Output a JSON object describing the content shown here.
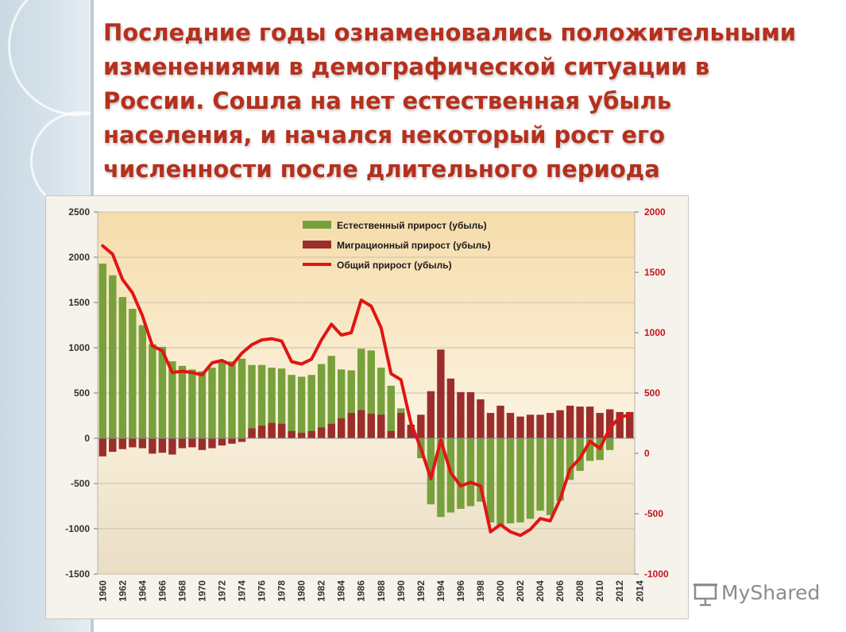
{
  "heading": "Последние годы ознаменовались положительными изменениями в демографической ситуации в России. Сошла на нет естественная убыль населения, и начался некоторый рост его численности после длительного периода сокращения.",
  "watermark": "MyShared",
  "colors": {
    "accent": "#b5301d",
    "natural": "#76a13c",
    "migration": "#9b2d2d",
    "total": "#e01515",
    "right_axis": "#c0161c"
  },
  "chart_data": {
    "type": "bar",
    "x_tick_labels": [
      "1960",
      "1962",
      "1964",
      "1966",
      "1968",
      "1970",
      "1972",
      "1974",
      "1976",
      "1978",
      "1980",
      "1982",
      "1984",
      "1986",
      "1988",
      "1990",
      "1992",
      "1994",
      "1996",
      "1998",
      "2000",
      "2002",
      "2004",
      "2006",
      "2008",
      "2010",
      "2012",
      "2014"
    ],
    "left_y_ticks": [
      "2500",
      "2000",
      "1500",
      "1000",
      "500",
      "0",
      "-500",
      "-1000",
      "-1500"
    ],
    "right_y_ticks": [
      "2000",
      "1500",
      "1000",
      "500",
      "0",
      "-500",
      "-1000"
    ],
    "ylim_left": [
      -1500,
      2500
    ],
    "ylim_right": [
      -1000,
      2000
    ],
    "legend_position": "top",
    "categories": [
      1960,
      1961,
      1962,
      1963,
      1964,
      1965,
      1966,
      1967,
      1968,
      1969,
      1970,
      1971,
      1972,
      1973,
      1974,
      1975,
      1976,
      1977,
      1978,
      1979,
      1980,
      1981,
      1982,
      1983,
      1984,
      1985,
      1986,
      1987,
      1988,
      1989,
      1990,
      1991,
      1992,
      1993,
      1994,
      1995,
      1996,
      1997,
      1998,
      1999,
      2000,
      2001,
      2002,
      2003,
      2004,
      2005,
      2006,
      2007,
      2008,
      2009,
      2010,
      2011,
      2012,
      2013
    ],
    "series": [
      {
        "name": "Естественный прирост (убыль)",
        "type": "bar",
        "axis": "left",
        "values": [
          1930,
          1800,
          1560,
          1430,
          1250,
          1040,
          1010,
          850,
          800,
          760,
          740,
          780,
          850,
          850,
          880,
          810,
          810,
          780,
          770,
          700,
          680,
          700,
          820,
          910,
          760,
          750,
          990,
          970,
          780,
          580,
          330,
          100,
          -220,
          -730,
          -870,
          -820,
          -780,
          -750,
          -700,
          -930,
          -960,
          -940,
          -930,
          -890,
          -800,
          -850,
          -690,
          -460,
          -360,
          -250,
          -240,
          -130,
          5,
          25
        ]
      },
      {
        "name": "Миграционный прирост (убыль)",
        "type": "bar",
        "axis": "left",
        "values": [
          -200,
          -150,
          -120,
          -100,
          -110,
          -170,
          -160,
          -180,
          -110,
          -100,
          -130,
          -110,
          -80,
          -60,
          -40,
          110,
          140,
          170,
          160,
          80,
          60,
          80,
          120,
          160,
          220,
          280,
          310,
          270,
          260,
          80,
          280,
          150,
          260,
          520,
          980,
          660,
          510,
          510,
          430,
          280,
          360,
          280,
          240,
          260,
          260,
          280,
          310,
          360,
          350,
          350,
          280,
          320,
          290,
          290
        ]
      },
      {
        "name": "Общий прирост (убыль)",
        "type": "line",
        "axis": "right",
        "values": [
          1720,
          1650,
          1440,
          1330,
          1140,
          890,
          850,
          670,
          680,
          670,
          650,
          750,
          770,
          730,
          830,
          900,
          940,
          950,
          930,
          760,
          740,
          780,
          940,
          1070,
          980,
          1000,
          1270,
          1220,
          1040,
          660,
          610,
          250,
          40,
          -210,
          110,
          -160,
          -270,
          -240,
          -270,
          -650,
          -590,
          -650,
          -680,
          -630,
          -540,
          -560,
          -380,
          -130,
          -40,
          100,
          40,
          210,
          300,
          320
        ]
      }
    ]
  }
}
